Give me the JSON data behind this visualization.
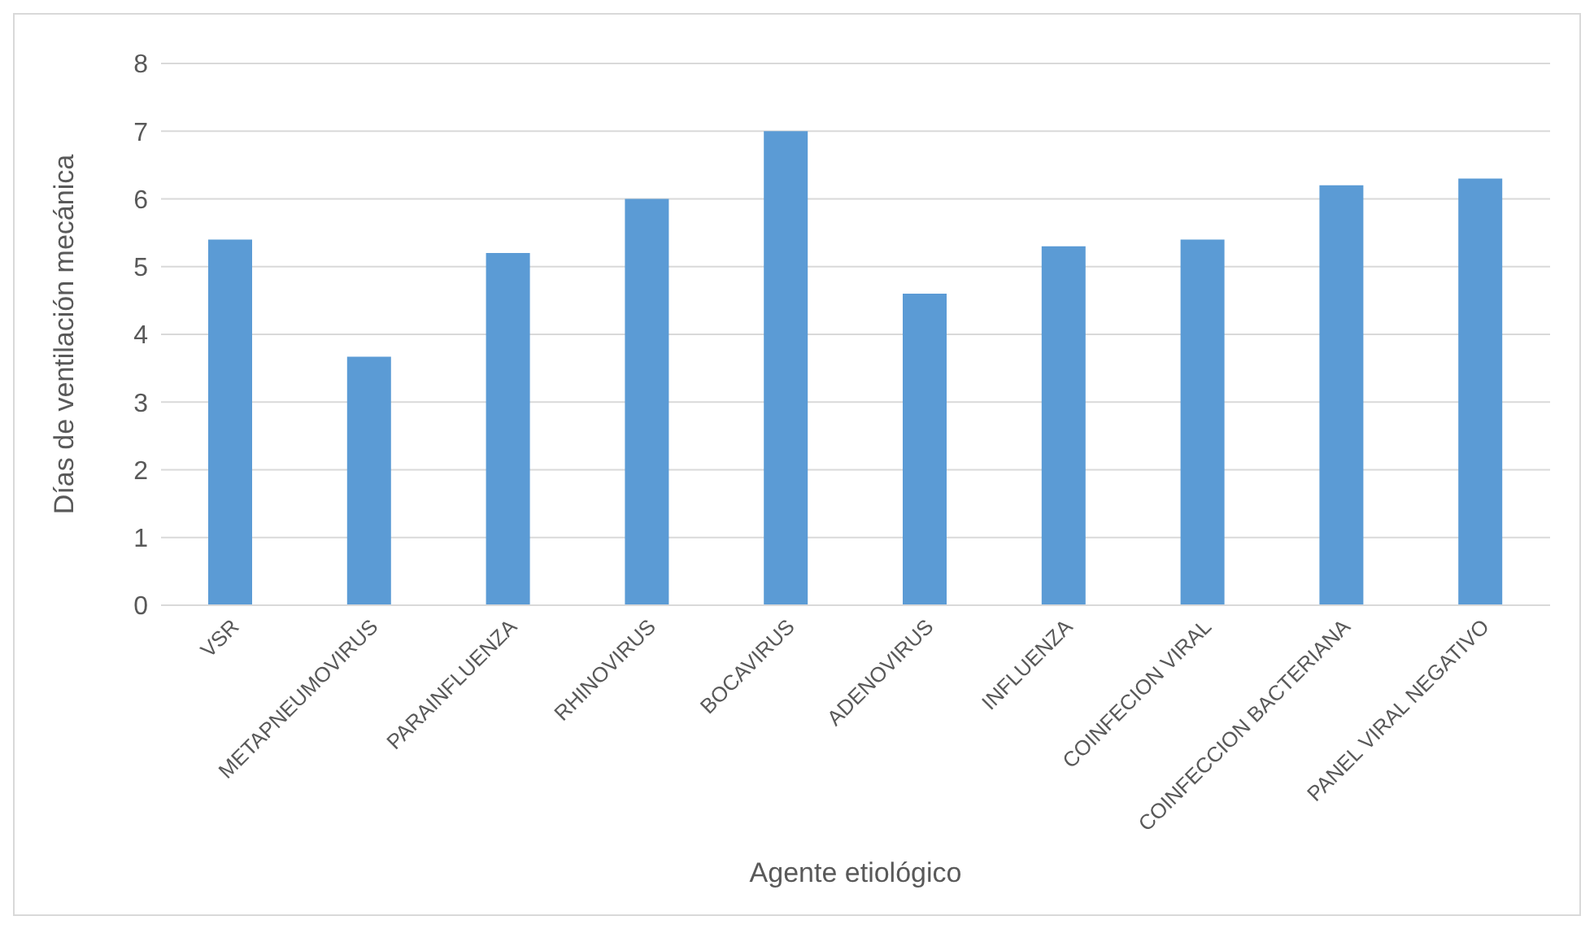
{
  "chart_data": {
    "type": "bar",
    "xlabel": "Agente etiológico",
    "ylabel": "Días de ventilación mecánica",
    "categories": [
      "VSR",
      "METAPNEUMOVIRUS",
      "PARAINFLUENZA",
      "RHINOVIRUS",
      "BOCAVIRUS",
      "ADENOVIRUS",
      "INFLUENZA",
      "COINFECION VIRAL",
      "COINFECCION BACTERIANA",
      "PANEL VIRAL NEGATIVO"
    ],
    "values": [
      5.4,
      3.67,
      5.2,
      6.0,
      7.0,
      4.6,
      5.3,
      5.4,
      6.2,
      6.3
    ],
    "color": "#5b9bd5",
    "ylim": [
      0,
      8
    ],
    "yticks": [
      0,
      1,
      2,
      3,
      4,
      5,
      6,
      7,
      8
    ],
    "grid": "y"
  }
}
